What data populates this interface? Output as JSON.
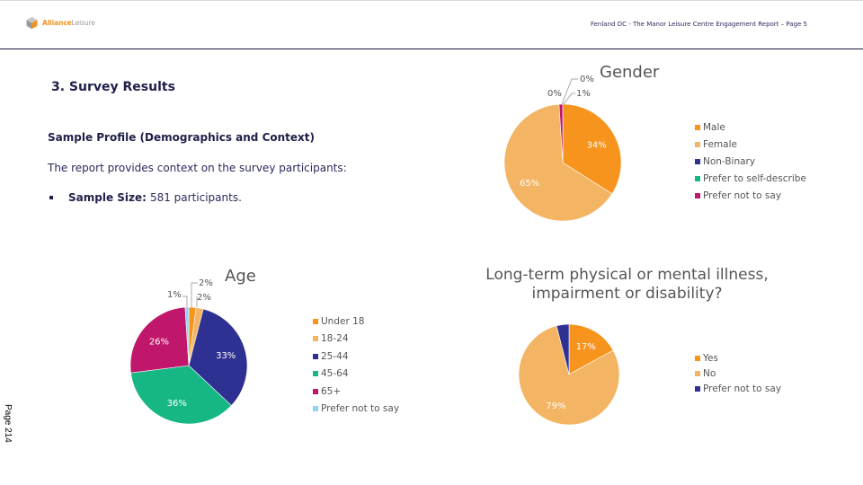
{
  "header": {
    "logo_part1": "Alliance",
    "logo_part2": "Leisure",
    "report_title": "Fenland DC - The Manor Leisure Centre Engagement Report – Page 5"
  },
  "content": {
    "section_title": "3. Survey Results",
    "subheading": "Sample Profile (Demographics and Context)",
    "intro": "The report provides context on the survey participants:",
    "bullet_label": "Sample Size:",
    "bullet_text": "581 participants."
  },
  "side_label": "Page 214",
  "colors": {
    "orange": "#f7941d",
    "light_orange": "#f3b463",
    "navy": "#2e3192",
    "green": "#16b784",
    "magenta": "#c0166b",
    "light_blue": "#8fd3f4"
  },
  "chart_data": [
    {
      "type": "pie",
      "title": "Gender",
      "legend_position": "right",
      "categories": [
        "Male",
        "Female",
        "Non-Binary",
        "Prefer to self-describe",
        "Prefer not to say"
      ],
      "values": [
        34,
        65,
        0,
        0,
        1
      ],
      "labels": [
        "34%",
        "65%",
        "0%",
        "0%",
        "1%"
      ],
      "colors": [
        "#f7941d",
        "#f3b463",
        "#2e3192",
        "#16b784",
        "#c0166b"
      ]
    },
    {
      "type": "pie",
      "title": "Age",
      "legend_position": "right",
      "categories": [
        "Under 18",
        "18-24",
        "25-44",
        "45-64",
        "65+",
        "Prefer not to say"
      ],
      "values": [
        2,
        2,
        33,
        36,
        26,
        1
      ],
      "labels": [
        "2%",
        "2%",
        "33%",
        "36%",
        "26%",
        "1%"
      ],
      "colors": [
        "#f7941d",
        "#f3b463",
        "#2e3192",
        "#16b784",
        "#c0166b",
        "#8fd3f4"
      ]
    },
    {
      "type": "pie",
      "title": "Long-term physical or mental illness, impairment or disability?",
      "title_line1": "Long-term physical or mental illness,",
      "title_line2": "impairment or disability?",
      "legend_position": "right",
      "categories": [
        "Yes",
        "No",
        "Prefer not to say"
      ],
      "values": [
        17,
        79,
        4
      ],
      "labels": [
        "17%",
        "79%",
        ""
      ],
      "colors": [
        "#f7941d",
        "#f3b463",
        "#2e3192"
      ]
    }
  ]
}
